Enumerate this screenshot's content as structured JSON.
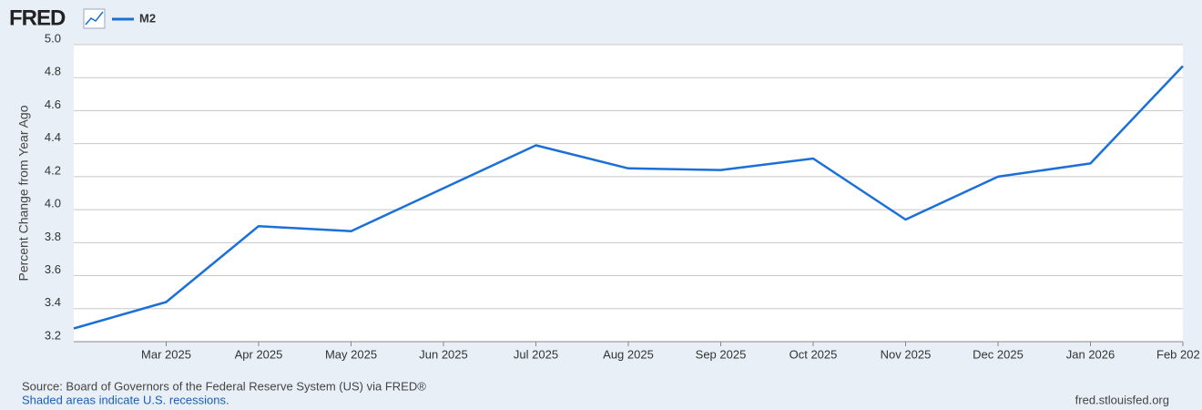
{
  "logo": "FRED",
  "chart_data": {
    "type": "line",
    "y_label": "Percent Change from Year Ago",
    "categories": [
      null,
      "Mar 2025",
      "Apr 2025",
      "May 2025",
      "Jun 2025",
      "Jul 2025",
      "Aug 2025",
      "Sep 2025",
      "Oct 2025",
      "Nov 2025",
      "Dec 2025",
      "Jan 2026",
      "Feb 202"
    ],
    "series": [
      {
        "name": "M2",
        "color": "#1a6fd8",
        "values": [
          3.28,
          3.44,
          3.9,
          3.87,
          4.13,
          4.39,
          4.25,
          4.24,
          4.31,
          3.94,
          4.2,
          4.28,
          4.87
        ]
      }
    ],
    "ylim": [
      3.2,
      5.0
    ],
    "yticks": [
      3.2,
      3.4,
      3.6,
      3.8,
      {
        "value": 4,
        "label": "4.0"
      },
      4.2,
      4.4,
      4.6,
      4.8,
      {
        "value": 5,
        "label": "5.0"
      }
    ],
    "grid": true,
    "source": "Source: Board of Governors of the Federal Reserve System (US) via FRED®",
    "note": "Shaded areas indicate U.S. recessions.",
    "credit": "fred.stlouisfed.org"
  }
}
